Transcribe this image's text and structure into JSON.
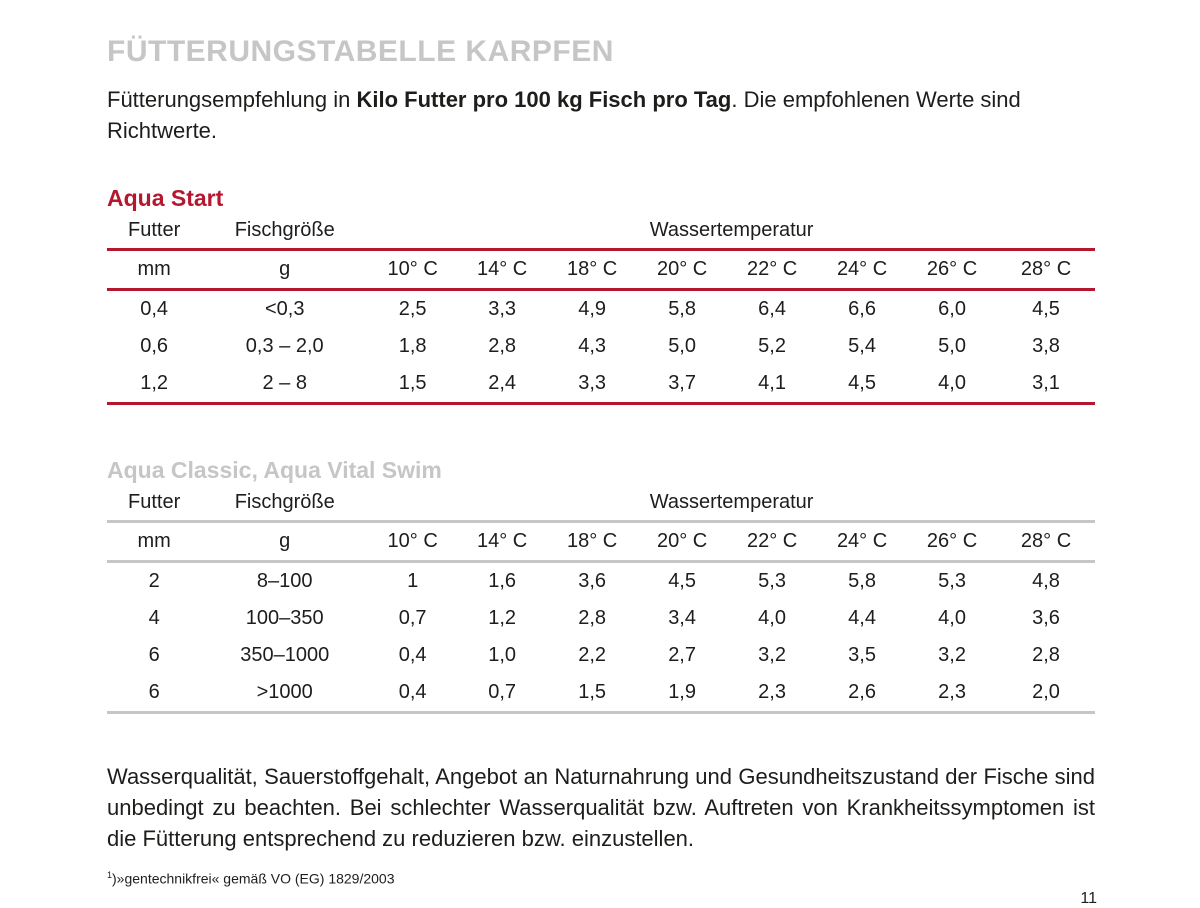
{
  "title": "FÜTTERUNGSTABELLE KARPFEN",
  "intro": {
    "pre": "Fütterungsempfehlung in ",
    "bold": "Kilo Futter pro 100 kg Fisch pro Tag",
    "post": ". Die empfohlenen Werte sind Richtwerte."
  },
  "colors": {
    "accent_red": "#b5172f",
    "muted_gray": "#c6c6c6"
  },
  "tables": [
    {
      "heading": "Aqua Start",
      "col_futter": "Futter",
      "col_fischgroesse": "Fischgröße",
      "col_wassertemperatur": "Wassertemperatur",
      "unit_futter": "mm",
      "unit_fischgroesse": "g",
      "temperatures": [
        "10° C",
        "14° C",
        "18° C",
        "20° C",
        "22° C",
        "24° C",
        "26° C",
        "28° C"
      ],
      "rows": [
        {
          "futter": "0,4",
          "fischgroesse": "<0,3",
          "values": [
            "2,5",
            "3,3",
            "4,9",
            "5,8",
            "6,4",
            "6,6",
            "6,0",
            "4,5"
          ]
        },
        {
          "futter": "0,6",
          "fischgroesse": "0,3 – 2,0",
          "values": [
            "1,8",
            "2,8",
            "4,3",
            "5,0",
            "5,2",
            "5,4",
            "5,0",
            "3,8"
          ]
        },
        {
          "futter": "1,2",
          "fischgroesse": "2 – 8",
          "values": [
            "1,5",
            "2,4",
            "3,3",
            "3,7",
            "4,1",
            "4,5",
            "4,0",
            "3,1"
          ]
        }
      ]
    },
    {
      "heading": "Aqua Classic, Aqua Vital Swim",
      "col_futter": "Futter",
      "col_fischgroesse": "Fischgröße",
      "col_wassertemperatur": "Wassertemperatur",
      "unit_futter": "mm",
      "unit_fischgroesse": "g",
      "temperatures": [
        "10° C",
        "14° C",
        "18° C",
        "20° C",
        "22° C",
        "24° C",
        "26° C",
        "28° C"
      ],
      "rows": [
        {
          "futter": "2",
          "fischgroesse": "8–100",
          "values": [
            "1",
            "1,6",
            "3,6",
            "4,5",
            "5,3",
            "5,8",
            "5,3",
            "4,8"
          ]
        },
        {
          "futter": "4",
          "fischgroesse": "100–350",
          "values": [
            "0,7",
            "1,2",
            "2,8",
            "3,4",
            "4,0",
            "4,4",
            "4,0",
            "3,6"
          ]
        },
        {
          "futter": "6",
          "fischgroesse": "350–1000",
          "values": [
            "0,4",
            "1,0",
            "2,2",
            "2,7",
            "3,2",
            "3,5",
            "3,2",
            "2,8"
          ]
        },
        {
          "futter": "6",
          "fischgroesse": ">1000",
          "values": [
            "0,4",
            "0,7",
            "1,5",
            "1,9",
            "2,3",
            "2,6",
            "2,3",
            "2,0"
          ]
        }
      ]
    }
  ],
  "outro": "Wasserqualität, Sauerstoffgehalt, Angebot an Naturnahrung und Gesundheitszustand der Fische sind unbedingt zu beachten. Bei schlechter Wasserqualität bzw. Auftreten von Krankheitssymptomen ist die Fütterung entsprechend zu reduzieren bzw. einzustellen.",
  "footnote": {
    "marker": "1",
    "text": ")»gentechnikfrei« gemäß VO (EG) 1829/2003"
  },
  "page_number": "11"
}
